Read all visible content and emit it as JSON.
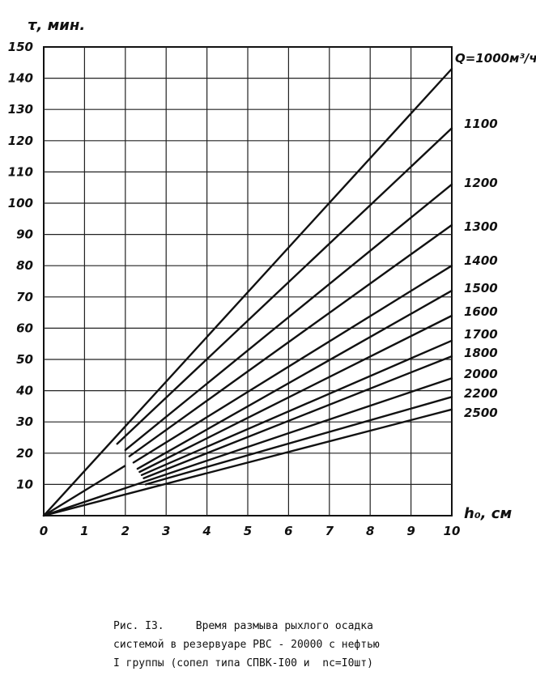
{
  "chart_data": {
    "type": "line",
    "ylabel": "τ, мин.",
    "xlabel": "h₀, см",
    "x_ticks": [
      "0",
      "1",
      "2",
      "3",
      "4",
      "5",
      "6",
      "7",
      "8",
      "9",
      "10"
    ],
    "y_ticks": [
      "10",
      "20",
      "30",
      "40",
      "50",
      "60",
      "70",
      "80",
      "90",
      "100",
      "110",
      "120",
      "130",
      "140",
      "150"
    ],
    "xlim": [
      0,
      10
    ],
    "ylim": [
      0,
      150
    ],
    "grid": true,
    "legend": "labels at line ends, right",
    "series": [
      {
        "name": "Q=1000м³/ч",
        "x": [
          0,
          10
        ],
        "y": [
          0,
          143
        ]
      },
      {
        "name": "1100",
        "x": [
          1.8,
          10
        ],
        "y": [
          23,
          124
        ]
      },
      {
        "name": "1200",
        "x": [
          2.0,
          10
        ],
        "y": [
          21,
          106
        ]
      },
      {
        "name": "1300",
        "x": [
          2.1,
          10
        ],
        "y": [
          19,
          93
        ]
      },
      {
        "name": "1400",
        "x": [
          2.2,
          10
        ],
        "y": [
          17,
          80
        ]
      },
      {
        "name": "1500",
        "x": [
          2.3,
          10
        ],
        "y": [
          15,
          72
        ]
      },
      {
        "name": "1600",
        "x": [
          2.35,
          10
        ],
        "y": [
          14,
          64
        ]
      },
      {
        "name": "1700",
        "x": [
          2.4,
          10
        ],
        "y": [
          13,
          56
        ]
      },
      {
        "name": "1800",
        "x": [
          2.45,
          10
        ],
        "y": [
          12,
          51
        ]
      },
      {
        "name": "2000",
        "x": [
          0,
          10
        ],
        "y": [
          0,
          44
        ]
      },
      {
        "name": "2200",
        "x": [
          2.5,
          10
        ],
        "y": [
          10,
          38
        ]
      },
      {
        "name": "2500",
        "x": [
          0,
          10
        ],
        "y": [
          0,
          34
        ]
      }
    ],
    "extra_lines": [
      {
        "x": [
          0,
          2.0
        ],
        "y": [
          0,
          16
        ]
      }
    ]
  },
  "caption": {
    "line1": "Рис. I3.     Время размыва рыхлого осадка",
    "line2": "системой в резервуаре РВС - 20000 с нефтью",
    "line3": "I группы (сопел типа СПВК-I00 и  nс=I0шт)"
  }
}
